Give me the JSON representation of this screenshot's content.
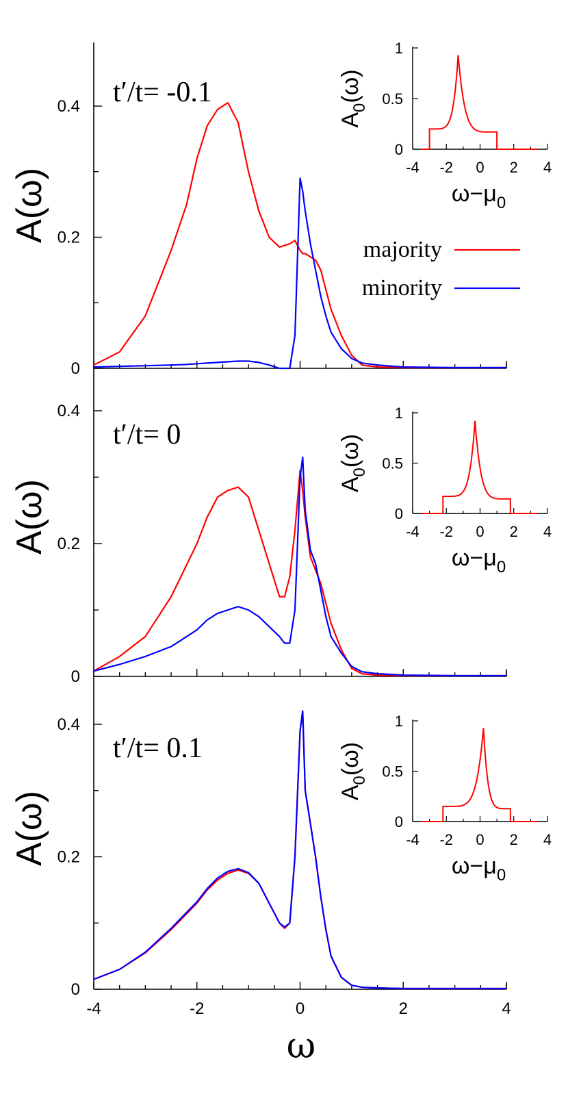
{
  "chart_data": [
    {
      "type": "line",
      "annotation": "t′/t= -0.1",
      "ylabel": "A(ω)",
      "xlabel": "",
      "xlim": [
        -4,
        4
      ],
      "ylim": [
        0,
        0.5
      ],
      "ytick_labels": [
        "0",
        "0.2",
        "0.4"
      ],
      "x": [
        -4.0,
        -3.5,
        -3.0,
        -2.5,
        -2.2,
        -2.0,
        -1.8,
        -1.6,
        -1.4,
        -1.2,
        -1.0,
        -0.8,
        -0.6,
        -0.4,
        -0.2,
        -0.1,
        0.0,
        0.05,
        0.1,
        0.2,
        0.3,
        0.4,
        0.5,
        0.6,
        0.8,
        1.0,
        1.2,
        1.5,
        2.0,
        3.0,
        4.0
      ],
      "series": [
        {
          "name": "majority",
          "color": "#ff0000",
          "values": [
            0.005,
            0.025,
            0.08,
            0.18,
            0.25,
            0.32,
            0.37,
            0.395,
            0.405,
            0.375,
            0.3,
            0.24,
            0.2,
            0.185,
            0.19,
            0.195,
            0.18,
            0.175,
            0.175,
            0.17,
            0.165,
            0.15,
            0.12,
            0.09,
            0.05,
            0.02,
            0.005,
            0.002,
            0.001,
            0.001,
            0.001
          ]
        },
        {
          "name": "minority",
          "color": "#0000ff",
          "values": [
            0.002,
            0.003,
            0.004,
            0.005,
            0.006,
            0.007,
            0.008,
            0.009,
            0.01,
            0.011,
            0.011,
            0.009,
            0.005,
            0.0,
            0.0,
            0.05,
            0.29,
            0.27,
            0.24,
            0.19,
            0.15,
            0.11,
            0.08,
            0.055,
            0.03,
            0.015,
            0.008,
            0.005,
            0.002,
            0.001,
            0.001
          ]
        }
      ],
      "legend": {
        "position": "right",
        "entries": [
          "majority",
          "minority"
        ]
      },
      "inset": {
        "xlabel": "ω−μ",
        "xlabel_sub": "0",
        "ylabel": "A",
        "ylabel_sub": "0",
        "ylabel_tail": "(ω)",
        "xlim": [
          -4,
          4
        ],
        "ylim": [
          0,
          1
        ],
        "xtick_labels": [
          "-4",
          "-2",
          "0",
          "2",
          "4"
        ],
        "ytick_labels": [
          "0",
          "0.5",
          "1"
        ],
        "band": [
          -3.0,
          1.0
        ],
        "peak": -1.3,
        "edge_value": 0.2,
        "peak_value": 0.93,
        "color": "#ff0000"
      }
    },
    {
      "type": "line",
      "annotation": "t′/t= 0",
      "ylabel": "A(ω)",
      "xlabel": "",
      "xlim": [
        -4,
        4
      ],
      "ylim": [
        0,
        0.5
      ],
      "ytick_labels": [
        "0",
        "0.2",
        "0.4"
      ],
      "x": [
        -4.0,
        -3.5,
        -3.0,
        -2.5,
        -2.0,
        -1.8,
        -1.6,
        -1.4,
        -1.2,
        -1.0,
        -0.8,
        -0.6,
        -0.4,
        -0.3,
        -0.2,
        -0.1,
        0.0,
        0.05,
        0.1,
        0.2,
        0.3,
        0.4,
        0.5,
        0.6,
        0.8,
        1.0,
        1.2,
        1.5,
        2.0,
        3.0,
        4.0
      ],
      "series": [
        {
          "name": "majority",
          "color": "#ff0000",
          "values": [
            0.008,
            0.03,
            0.06,
            0.12,
            0.2,
            0.24,
            0.27,
            0.28,
            0.285,
            0.27,
            0.22,
            0.17,
            0.12,
            0.12,
            0.15,
            0.22,
            0.31,
            0.28,
            0.24,
            0.18,
            0.16,
            0.14,
            0.11,
            0.08,
            0.04,
            0.012,
            0.004,
            0.002,
            0.001,
            0.001,
            0.001
          ]
        },
        {
          "name": "minority",
          "color": "#0000ff",
          "values": [
            0.008,
            0.018,
            0.03,
            0.045,
            0.07,
            0.085,
            0.095,
            0.1,
            0.105,
            0.1,
            0.09,
            0.075,
            0.06,
            0.05,
            0.05,
            0.1,
            0.3,
            0.33,
            0.25,
            0.19,
            0.17,
            0.13,
            0.09,
            0.06,
            0.035,
            0.015,
            0.007,
            0.004,
            0.002,
            0.001,
            0.001
          ]
        }
      ],
      "inset": {
        "xlabel": "ω−μ",
        "xlabel_sub": "0",
        "ylabel": "A",
        "ylabel_sub": "0",
        "ylabel_tail": "(ω)",
        "xlim": [
          -4,
          4
        ],
        "ylim": [
          0,
          1
        ],
        "xtick_labels": [
          "-4",
          "-2",
          "0",
          "2",
          "4"
        ],
        "ytick_labels": [
          "0",
          "0.5",
          "1"
        ],
        "band": [
          -2.2,
          1.8
        ],
        "peak": -0.3,
        "edge_value": 0.17,
        "peak_value": 0.92,
        "color": "#ff0000"
      }
    },
    {
      "type": "line",
      "annotation": "t′/t= 0.1",
      "ylabel": "A(ω)",
      "xlabel": "ω",
      "xlim": [
        -4,
        4
      ],
      "ylim": [
        0,
        0.5
      ],
      "xtick_labels": [
        "-4",
        "-2",
        "0",
        "2",
        "4"
      ],
      "ytick_labels": [
        "0",
        "0.2",
        "0.4"
      ],
      "x": [
        -4.0,
        -3.5,
        -3.0,
        -2.5,
        -2.0,
        -1.8,
        -1.6,
        -1.4,
        -1.2,
        -1.0,
        -0.8,
        -0.6,
        -0.4,
        -0.3,
        -0.2,
        -0.1,
        0.0,
        0.05,
        0.1,
        0.2,
        0.3,
        0.4,
        0.5,
        0.6,
        0.8,
        1.0,
        1.2,
        1.5,
        2.0,
        3.0,
        4.0
      ],
      "series": [
        {
          "name": "majority",
          "color": "#ff0000",
          "values": [
            0.015,
            0.03,
            0.055,
            0.09,
            0.13,
            0.15,
            0.165,
            0.175,
            0.18,
            0.175,
            0.16,
            0.13,
            0.1,
            0.092,
            0.1,
            0.2,
            0.39,
            0.42,
            0.3,
            0.25,
            0.2,
            0.14,
            0.09,
            0.05,
            0.018,
            0.006,
            0.003,
            0.002,
            0.001,
            0.001,
            0.001
          ]
        },
        {
          "name": "minority",
          "color": "#0000ff",
          "values": [
            0.015,
            0.03,
            0.056,
            0.092,
            0.132,
            0.152,
            0.168,
            0.178,
            0.182,
            0.176,
            0.16,
            0.13,
            0.1,
            0.094,
            0.1,
            0.2,
            0.39,
            0.42,
            0.3,
            0.25,
            0.2,
            0.14,
            0.09,
            0.05,
            0.018,
            0.006,
            0.003,
            0.002,
            0.001,
            0.001,
            0.001
          ]
        }
      ],
      "inset": {
        "xlabel": "ω−μ",
        "xlabel_sub": "0",
        "ylabel": "A",
        "ylabel_sub": "0",
        "ylabel_tail": "(ω)",
        "xlim": [
          -4,
          4
        ],
        "ylim": [
          0,
          1
        ],
        "xtick_labels": [
          "-4",
          "-2",
          "0",
          "2",
          "4"
        ],
        "ytick_labels": [
          "0",
          "0.5",
          "1"
        ],
        "band": [
          -2.2,
          1.8
        ],
        "peak": 0.2,
        "edge_value": 0.15,
        "peak_value": 0.93,
        "color": "#ff0000"
      }
    }
  ]
}
